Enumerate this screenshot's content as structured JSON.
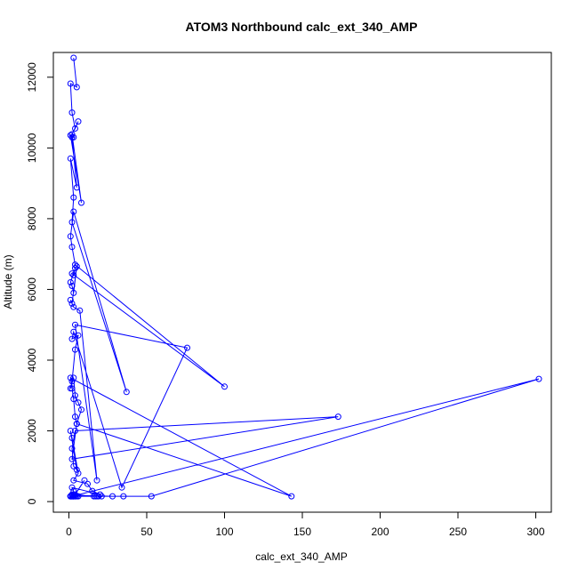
{
  "chart_data": {
    "type": "line",
    "title": "ATOM3 Northbound calc_ext_340_AMP",
    "xlabel": "calc_ext_340_AMP",
    "ylabel": "Altitude (m)",
    "xlim": [
      -10,
      310
    ],
    "ylim": [
      -300,
      12700
    ],
    "x_ticks": [
      0,
      50,
      100,
      150,
      200,
      250,
      300
    ],
    "x_tick_labels": [
      "0",
      "50",
      "100",
      "150",
      "200",
      "250",
      "300"
    ],
    "y_ticks": [
      0,
      2000,
      4000,
      6000,
      8000,
      10000,
      12000
    ],
    "y_tick_labels": [
      "0",
      "2000",
      "4000",
      "6000",
      "8000",
      "10000",
      "12000"
    ],
    "grid": false,
    "legend": "none",
    "series": [
      {
        "color": "#0000ff",
        "marker": "open-circle",
        "x": [
          3,
          5,
          1,
          2,
          4,
          6,
          2,
          8,
          1,
          3,
          2,
          5,
          1,
          3,
          2,
          37,
          3,
          1,
          2,
          4,
          100,
          2,
          3,
          4,
          1,
          2,
          3,
          5,
          2,
          1,
          3,
          7,
          18,
          4,
          76,
          34,
          3,
          2,
          6,
          4,
          2,
          1,
          3,
          4,
          6,
          8,
          5,
          143,
          1,
          2,
          3,
          4,
          5,
          2,
          173,
          4,
          2,
          3,
          5,
          1,
          2,
          6,
          3,
          12,
          15,
          20,
          2,
          3,
          2,
          4,
          10,
          3,
          2,
          28,
          2,
          4,
          3,
          17,
          1,
          53,
          302,
          2,
          5,
          1,
          3,
          16,
          4,
          35,
          3,
          2,
          18,
          2,
          1,
          4,
          3,
          19,
          2,
          5,
          21,
          3,
          2,
          6,
          1,
          2,
          3
        ],
        "y": [
          12550,
          11720,
          11820,
          11000,
          10550,
          10750,
          10390,
          8450,
          10360,
          10300,
          10300,
          8880,
          9700,
          8600,
          7900,
          3100,
          8200,
          7500,
          7200,
          6700,
          3250,
          6450,
          6400,
          6600,
          6200,
          6100,
          5900,
          6650,
          5600,
          5700,
          5500,
          5400,
          600,
          5000,
          4350,
          400,
          4800,
          4600,
          4700,
          4300,
          3400,
          3200,
          3500,
          3000,
          2800,
          2600,
          2200,
          150,
          3500,
          3200,
          2900,
          2400,
          2200,
          1200,
          2400,
          2000,
          1500,
          1000,
          900,
          2000,
          1800,
          800,
          600,
          500,
          300,
          200,
          400,
          300,
          200,
          200,
          600,
          150,
          180,
          150,
          160,
          150,
          150,
          150,
          150,
          150,
          3470,
          150,
          150,
          150,
          200,
          150,
          150,
          150,
          150,
          150,
          150,
          150,
          150,
          150,
          150,
          150,
          150,
          150,
          150,
          150,
          150,
          150,
          150,
          150,
          150
        ]
      }
    ]
  }
}
